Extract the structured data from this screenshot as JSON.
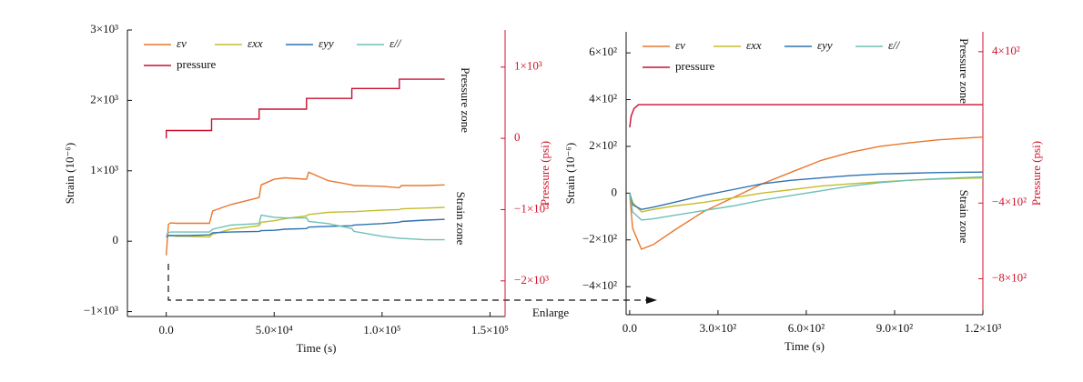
{
  "chart_data": [
    {
      "type": "line",
      "x_label": "Time (s)",
      "y_label": "Strain (10⁻⁶)",
      "y2_label": "Pressure (psi)",
      "xlim": [
        -18000,
        157000
      ],
      "xticks": [
        {
          "value": 0,
          "label": "0.0"
        },
        {
          "value": 50000,
          "label": "5.0×10⁴"
        },
        {
          "value": 100000,
          "label": "1.0×10⁵"
        },
        {
          "value": 150000,
          "label": "1.5×10⁵"
        }
      ],
      "ylim": [
        -1070,
        3000
      ],
      "yticks": [
        {
          "value": -1000,
          "label": "−1×10³"
        },
        0,
        {
          "value": 1000,
          "label": "1×10³"
        },
        {
          "value": 2000,
          "label": "2×10³"
        },
        {
          "value": 3000,
          "label": "3×10³"
        }
      ],
      "y2lim": [
        -2500,
        1520
      ],
      "y2ticks": [
        {
          "value": -2000,
          "label": "−2×10³"
        },
        {
          "value": -1000,
          "label": "−1×10³"
        },
        0,
        {
          "value": 1000,
          "label": "1×10³"
        }
      ],
      "legend": "upper left",
      "annotations": [
        "Pressure zone",
        "Strain zone"
      ],
      "x": [
        0,
        1000,
        2000,
        5000,
        10000,
        20000,
        21500,
        30000,
        43000,
        44000,
        50000,
        55000,
        65000,
        66000,
        75000,
        86000,
        87000,
        100000,
        108000,
        109000,
        120000,
        129000
      ],
      "series": [
        {
          "name": "εv",
          "color": "#e8772e",
          "values": [
            -200,
            240,
            260,
            255,
            255,
            255,
            430,
            520,
            620,
            800,
            880,
            900,
            880,
            980,
            860,
            800,
            790,
            780,
            760,
            790,
            790,
            800
          ]
        },
        {
          "name": "εxx",
          "color": "#c4bd2a",
          "values": [
            50,
            80,
            80,
            70,
            70,
            60,
            100,
            170,
            220,
            270,
            290,
            320,
            360,
            380,
            410,
            420,
            420,
            440,
            450,
            460,
            470,
            480
          ]
        },
        {
          "name": "εyy",
          "color": "#2f72b0",
          "values": [
            60,
            80,
            80,
            80,
            80,
            90,
            120,
            130,
            140,
            150,
            155,
            170,
            180,
            200,
            210,
            220,
            230,
            250,
            270,
            280,
            300,
            310
          ]
        },
        {
          "name": "ε//",
          "color": "#6cc0b6",
          "values": [
            90,
            120,
            130,
            130,
            130,
            130,
            170,
            230,
            250,
            370,
            340,
            330,
            330,
            280,
            250,
            180,
            140,
            70,
            40,
            40,
            20,
            20
          ]
        },
        {
          "name": "pressure",
          "color": "#c8102e",
          "axis": "y2",
          "x": [
            0,
            0,
            21000,
            21000,
            43000,
            43000,
            65000,
            65000,
            86000,
            86000,
            108000,
            108000,
            129000
          ],
          "values": [
            0,
            110,
            110,
            270,
            270,
            410,
            410,
            560,
            560,
            700,
            700,
            830,
            830
          ]
        }
      ]
    },
    {
      "type": "line",
      "x_label": "Time (s)",
      "y_label": "Strain (10⁻⁶)",
      "y2_label": "Pressure (psi)",
      "xlim": [
        -12,
        1200
      ],
      "xticks": [
        {
          "value": 0,
          "label": "0.0"
        },
        {
          "value": 300,
          "label": "3.0×10²"
        },
        {
          "value": 600,
          "label": "6.0×10²"
        },
        {
          "value": 900,
          "label": "9.0×10²"
        },
        {
          "value": 1200,
          "label": "1.2×10³"
        }
      ],
      "ylim": [
        -520,
        690
      ],
      "yticks": [
        {
          "value": -400,
          "label": "−4×10²"
        },
        {
          "value": -200,
          "label": "−2×10²"
        },
        0,
        {
          "value": 200,
          "label": "2×10²"
        },
        {
          "value": 400,
          "label": "4×10²"
        },
        {
          "value": 600,
          "label": "6×10²"
        }
      ],
      "y2lim": [
        -990,
        505
      ],
      "y2ticks": [
        {
          "value": -800,
          "label": "−8×10²"
        },
        {
          "value": -400,
          "label": "−4×10²"
        },
        {
          "value": 400,
          "label": "4×10²"
        }
      ],
      "legend": "upper left",
      "annotations": [
        "Pressure zone",
        "Strain zone"
      ],
      "x": [
        0,
        10,
        40,
        80,
        150,
        250,
        350,
        450,
        550,
        650,
        750,
        850,
        950,
        1050,
        1200
      ],
      "series": [
        {
          "name": "εv",
          "color": "#e8772e",
          "values": [
            0,
            -150,
            -240,
            -220,
            -160,
            -80,
            -20,
            40,
            90,
            140,
            175,
            200,
            215,
            228,
            240
          ]
        },
        {
          "name": "εxx",
          "color": "#c4bd2a",
          "values": [
            0,
            -40,
            -80,
            -70,
            -55,
            -40,
            -20,
            0,
            15,
            30,
            40,
            48,
            55,
            60,
            65
          ]
        },
        {
          "name": "εyy",
          "color": "#2f72b0",
          "values": [
            0,
            -50,
            -70,
            -60,
            -40,
            -10,
            15,
            40,
            55,
            65,
            75,
            82,
            85,
            88,
            90
          ]
        },
        {
          "name": "ε//",
          "color": "#6cc0b6",
          "values": [
            0,
            -80,
            -115,
            -110,
            -95,
            -75,
            -55,
            -30,
            -10,
            10,
            30,
            45,
            55,
            62,
            70
          ]
        },
        {
          "name": "pressure",
          "color": "#c8102e",
          "axis": "y2",
          "x": [
            0,
            5,
            15,
            30,
            1200
          ],
          "values": [
            0,
            60,
            100,
            120,
            120
          ]
        }
      ]
    }
  ],
  "enlarge_label": "Enlarge"
}
